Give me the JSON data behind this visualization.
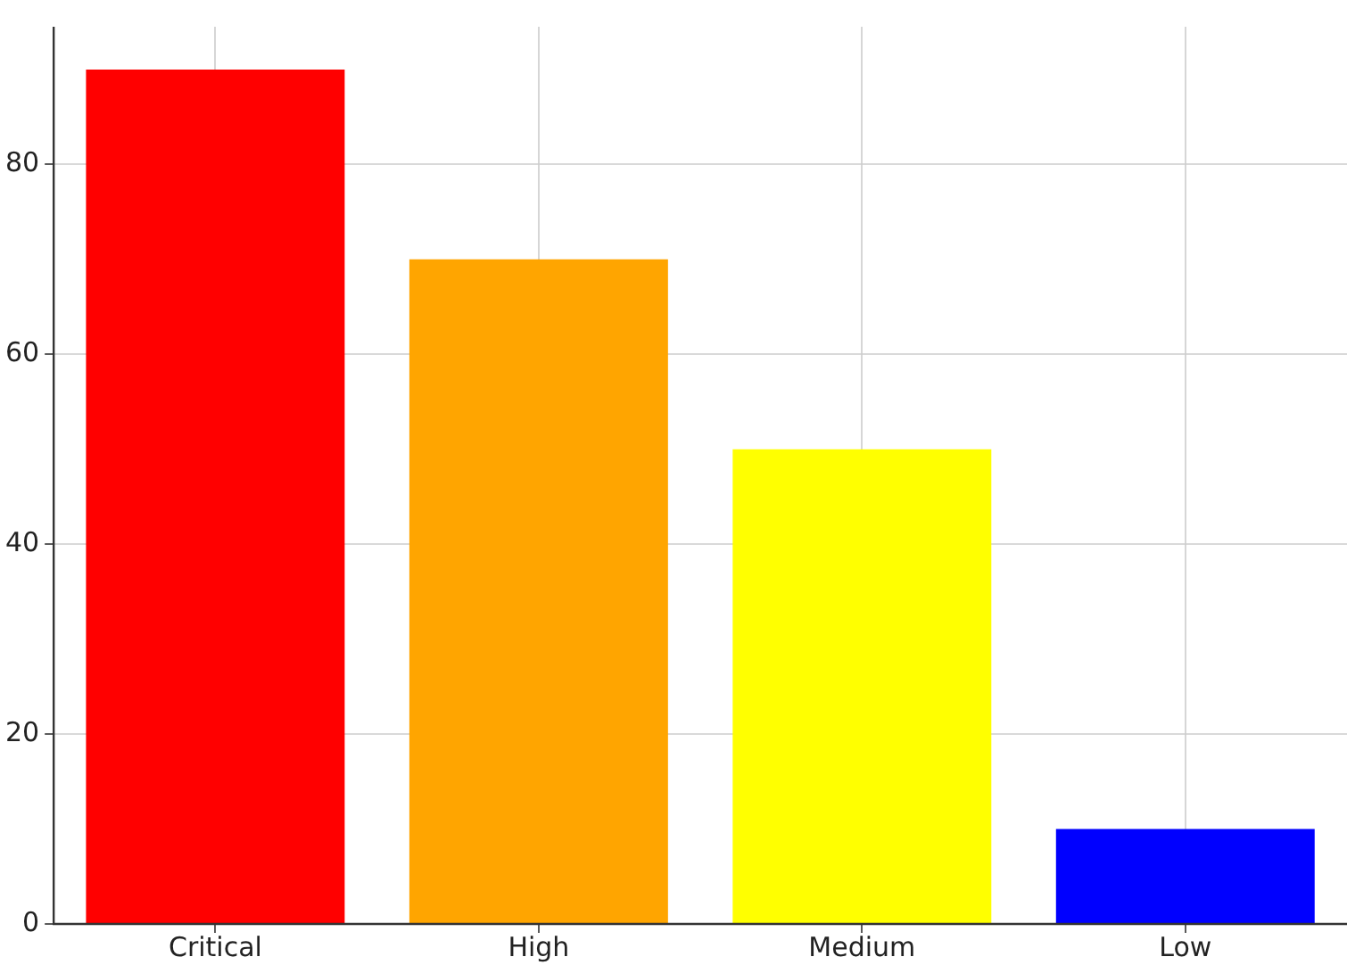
{
  "chart_data": {
    "type": "bar",
    "categories": [
      "Critical",
      "High",
      "Medium",
      "Low"
    ],
    "values": [
      90,
      70,
      50,
      10
    ],
    "colors": [
      "#ff0000",
      "#ffa500",
      "#ffff00",
      "#0000ff"
    ],
    "ylim": [
      0,
      94.5
    ],
    "yticks": [
      0,
      20,
      40,
      60,
      80
    ],
    "grid": true,
    "legend": false
  }
}
